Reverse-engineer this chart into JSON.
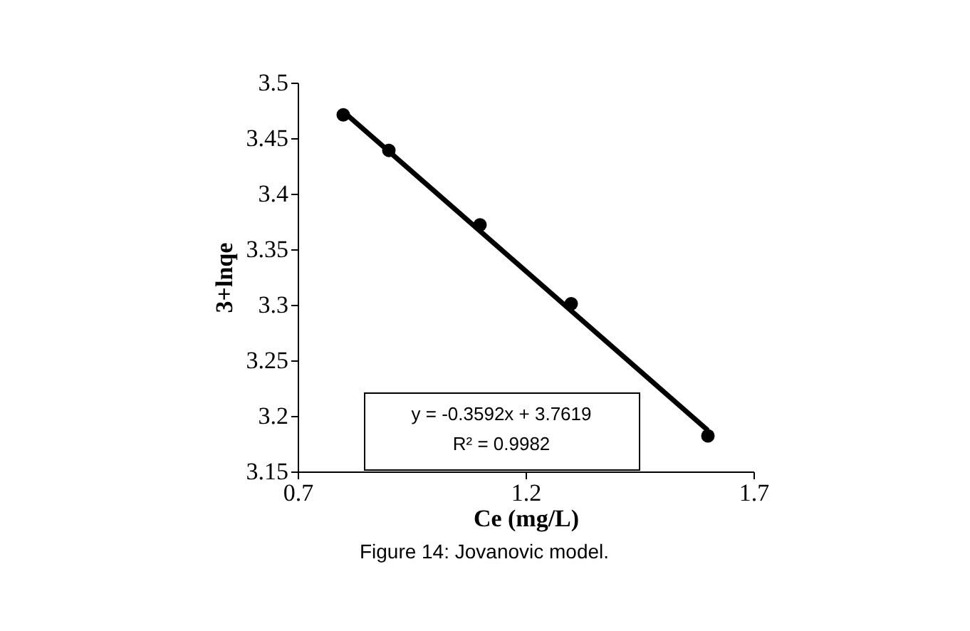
{
  "chart_data": {
    "type": "scatter",
    "xlabel": "Ce (mg/L)",
    "ylabel": "3+lnqe",
    "series": [
      {
        "color": "#000000",
        "x": [
          0.8,
          0.9,
          1.1,
          1.3,
          1.6
        ],
        "values": [
          3.471,
          3.439,
          3.372,
          3.301,
          3.182
        ]
      },
      {
        "type": "line",
        "color": "#000000",
        "x": [
          0.8,
          1.6
        ],
        "values": [
          3.474,
          3.187
        ],
        "marker": "none"
      }
    ],
    "xlim": [
      0.7,
      1.7
    ],
    "xticks": [
      0.7,
      1.2,
      1.7
    ],
    "ylim": [
      3.15,
      3.5
    ],
    "yticks": [
      3.15,
      3.2,
      3.25,
      3.3,
      3.35,
      3.4,
      3.45,
      3.5
    ],
    "marker": "circle",
    "grid": false,
    "annotations": [
      "y = -0.3592x + 3.7619",
      "R² = 0.9982",
      "Figure 14: Jovanovic model."
    ]
  }
}
